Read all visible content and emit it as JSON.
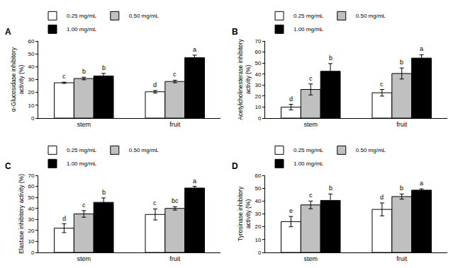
{
  "chart_data": [
    {
      "type": "bar",
      "title": "A",
      "ylabel": "α-Glucosidase inhibitory\nactivity (%)",
      "categories": [
        "stem",
        "fruit"
      ],
      "ylim": [
        0,
        60
      ],
      "yticks": [
        0,
        10,
        20,
        30,
        40,
        50,
        60
      ],
      "legend": "top",
      "grid": false,
      "series": [
        {
          "name": "0.25 mg/mL",
          "color": "#ffffff",
          "values": [
            27.5,
            20.5
          ],
          "errors": [
            0.5,
            1
          ],
          "letters": [
            "c",
            "d"
          ]
        },
        {
          "name": "0.50 mg/mL",
          "color": "#c0c0c0",
          "values": [
            30.8,
            28.5
          ],
          "errors": [
            1,
            1
          ],
          "letters": [
            "b",
            "c"
          ]
        },
        {
          "name": "1.00 mg/mL",
          "color": "#000000",
          "values": [
            32.8,
            47
          ],
          "errors": [
            2,
            2
          ],
          "letters": [
            "b",
            "a"
          ]
        }
      ]
    },
    {
      "type": "bar",
      "title": "B",
      "ylabel": "Acetylcholinesterase inhibitory\nactivity (%)",
      "categories": [
        "stem",
        "fruit"
      ],
      "ylim": [
        0,
        70
      ],
      "yticks": [
        0,
        10,
        20,
        30,
        40,
        50,
        60,
        70
      ],
      "legend": "top",
      "grid": false,
      "series": [
        {
          "name": "0.25 mg/mL",
          "color": "#ffffff",
          "values": [
            10,
            23
          ],
          "errors": [
            2.5,
            3
          ],
          "letters": [
            "d",
            "c"
          ]
        },
        {
          "name": "0.50 mg/mL",
          "color": "#c0c0c0",
          "values": [
            26,
            40.5
          ],
          "errors": [
            5,
            5
          ],
          "letters": [
            "c",
            "b"
          ]
        },
        {
          "name": "1.00 mg/mL",
          "color": "#000000",
          "values": [
            42.5,
            54.5
          ],
          "errors": [
            7,
            3
          ],
          "letters": [
            "b",
            "a"
          ]
        }
      ]
    },
    {
      "type": "bar",
      "title": "C",
      "ylabel": "Elastase inhibitory activity (%)",
      "categories": [
        "stem",
        "fruit"
      ],
      "ylim": [
        0,
        70
      ],
      "yticks": [
        0,
        10,
        20,
        30,
        40,
        50,
        60,
        70
      ],
      "legend": "top",
      "grid": false,
      "series": [
        {
          "name": "0.25 mg/mL",
          "color": "#ffffff",
          "values": [
            22,
            34.5
          ],
          "errors": [
            4,
            5
          ],
          "letters": [
            "d",
            "c"
          ]
        },
        {
          "name": "0.50 mg/mL",
          "color": "#c0c0c0",
          "values": [
            35,
            40
          ],
          "errors": [
            3,
            1.5
          ],
          "letters": [
            "c",
            "bc"
          ]
        },
        {
          "name": "1.00 mg/mL",
          "color": "#000000",
          "values": [
            45.5,
            58.5
          ],
          "errors": [
            4,
            1.5
          ],
          "letters": [
            "b",
            "a"
          ]
        }
      ]
    },
    {
      "type": "bar",
      "title": "D",
      "ylabel": "Tyrosinase inhibitory\nactivity (%)",
      "categories": [
        "stem",
        "fruit"
      ],
      "ylim": [
        0,
        60
      ],
      "yticks": [
        0,
        10,
        20,
        30,
        40,
        50,
        60
      ],
      "legend": "top",
      "grid": false,
      "series": [
        {
          "name": "0.25 mg/mL",
          "color": "#ffffff",
          "values": [
            24,
            33.5
          ],
          "errors": [
            4,
            5
          ],
          "letters": [
            "e",
            "d"
          ]
        },
        {
          "name": "0.50 mg/mL",
          "color": "#c0c0c0",
          "values": [
            37,
            43.5
          ],
          "errors": [
            3,
            2
          ],
          "letters": [
            "c",
            "b"
          ]
        },
        {
          "name": "1.00 mg/mL",
          "color": "#000000",
          "values": [
            40.5,
            48.5
          ],
          "errors": [
            5,
            1
          ],
          "letters": [
            "b",
            "a"
          ]
        }
      ]
    }
  ]
}
